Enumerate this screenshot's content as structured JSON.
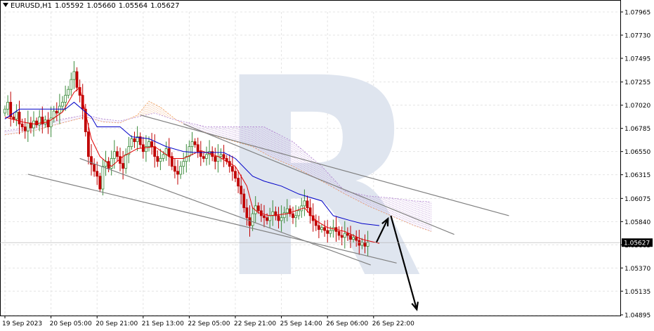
{
  "header": {
    "symbol": "EURUSD,H1",
    "open": "1.05592",
    "high": "1.05660",
    "low": "1.05564",
    "close": "1.05627"
  },
  "watermark": {
    "letter": "R",
    "color": "#dfe5ef"
  },
  "colors": {
    "bull_candle": "#3a8a3a",
    "bear_candle": "#c00000",
    "tenkan": "#e00000",
    "kijun": "#0000c8",
    "kumo_a": "#f0a060",
    "kumo_b": "#b080d0",
    "trendline": "#808080",
    "arrow": "#000000",
    "current_price_box": "#000000"
  },
  "chart_data": {
    "type": "candlestick",
    "symbol": "EURUSD",
    "timeframe": "H1",
    "ylim": [
      1.04895,
      1.07965
    ],
    "y_ticks": [
      "1.07965",
      "1.07730",
      "1.07495",
      "1.07255",
      "1.07020",
      "1.06785",
      "1.06550",
      "1.06315",
      "1.06075",
      "1.05840",
      "1.05605",
      "1.05370",
      "1.05135",
      "1.04895"
    ],
    "current_price": "1.05627",
    "x_ticks": [
      "19 Sep 2023",
      "20 Sep 05:00",
      "20 Sep 21:00",
      "21 Sep 13:00",
      "22 Sep 05:00",
      "22 Sep 21:00",
      "25 Sep 14:00",
      "26 Sep 06:00",
      "26 Sep 22:00"
    ],
    "x_tick_index": [
      0,
      16,
      32,
      48,
      64,
      80,
      96,
      112,
      128
    ],
    "close_series": [
      1.0698,
      1.0705,
      1.069,
      1.0688,
      1.0695,
      1.0683,
      1.068,
      1.0676,
      1.0684,
      1.0679,
      1.0686,
      1.0682,
      1.069,
      1.0683,
      1.0687,
      1.068,
      1.0689,
      1.0696,
      1.0694,
      1.0701,
      1.0705,
      1.0712,
      1.0718,
      1.0728,
      1.0736,
      1.072,
      1.0712,
      1.0698,
      1.0675,
      1.065,
      1.0642,
      1.0635,
      1.063,
      1.0617,
      1.064,
      1.0645,
      1.0638,
      1.0648,
      1.0655,
      1.065,
      1.0643,
      1.0638,
      1.0652,
      1.066,
      1.0668,
      1.0665,
      1.067,
      1.0662,
      1.0655,
      1.066,
      1.0665,
      1.066,
      1.065,
      1.0645,
      1.0648,
      1.0652,
      1.0658,
      1.065,
      1.064,
      1.0635,
      1.0632,
      1.064,
      1.0645,
      1.065,
      1.066,
      1.0665,
      1.0662,
      1.0655,
      1.065,
      1.0648,
      1.0652,
      1.0655,
      1.065,
      1.0645,
      1.065,
      1.0652,
      1.0648,
      1.0645,
      1.064,
      1.0635,
      1.0628,
      1.062,
      1.0612,
      1.0598,
      1.0588,
      1.058,
      1.0592,
      1.06,
      1.0595,
      1.059,
      1.0588,
      1.0585,
      1.059,
      1.0594,
      1.059,
      1.0585,
      1.0588,
      1.0593,
      1.0597,
      1.0592,
      1.0588,
      1.059,
      1.0595,
      1.06,
      1.0605,
      1.0598,
      1.059,
      1.0585,
      1.058,
      1.0576,
      1.0578,
      1.0575,
      1.0572,
      1.0575,
      1.0578,
      1.0574,
      1.057,
      1.0568,
      1.0572,
      1.057,
      1.0566,
      1.0568,
      1.0565,
      1.056,
      1.0563,
      1.0559,
      1.0563
    ],
    "tenkan": [
      [
        0,
        1.069
      ],
      [
        6,
        1.0685
      ],
      [
        10,
        1.0683
      ],
      [
        15,
        1.0685
      ],
      [
        20,
        1.0695
      ],
      [
        24,
        1.0715
      ],
      [
        26,
        1.072
      ],
      [
        30,
        1.0668
      ],
      [
        33,
        1.065
      ],
      [
        37,
        1.064
      ],
      [
        41,
        1.065
      ],
      [
        46,
        1.0658
      ],
      [
        52,
        1.066
      ],
      [
        58,
        1.0648
      ],
      [
        62,
        1.0648
      ],
      [
        68,
        1.0656
      ],
      [
        74,
        1.065
      ],
      [
        80,
        1.064
      ],
      [
        84,
        1.062
      ],
      [
        86,
        1.0598
      ],
      [
        88,
        1.0593
      ],
      [
        92,
        1.059
      ],
      [
        98,
        1.0592
      ],
      [
        104,
        1.0598
      ],
      [
        108,
        1.0585
      ],
      [
        112,
        1.0578
      ],
      [
        118,
        1.0574
      ],
      [
        124,
        1.0566
      ],
      [
        130,
        1.0562
      ]
    ],
    "kijun": [
      [
        0,
        1.0688
      ],
      [
        5,
        1.0698
      ],
      [
        12,
        1.0698
      ],
      [
        21,
        1.0698
      ],
      [
        24,
        1.0705
      ],
      [
        30,
        1.069
      ],
      [
        32,
        1.068
      ],
      [
        40,
        1.068
      ],
      [
        44,
        1.067
      ],
      [
        50,
        1.0668
      ],
      [
        56,
        1.066
      ],
      [
        62,
        1.0655
      ],
      [
        66,
        1.0654
      ],
      [
        76,
        1.0654
      ],
      [
        80,
        1.0648
      ],
      [
        86,
        1.063
      ],
      [
        90,
        1.0625
      ],
      [
        96,
        1.062
      ],
      [
        102,
        1.0612
      ],
      [
        110,
        1.0605
      ],
      [
        114,
        1.059
      ],
      [
        120,
        1.0585
      ],
      [
        124,
        1.0582
      ],
      [
        130,
        1.058
      ]
    ],
    "kumo_span_a": [
      [
        0,
        1.0672
      ],
      [
        10,
        1.0676
      ],
      [
        20,
        1.0684
      ],
      [
        28,
        1.069
      ],
      [
        34,
        1.0685
      ],
      [
        40,
        1.0684
      ],
      [
        46,
        1.0692
      ],
      [
        50,
        1.0706
      ],
      [
        54,
        1.07
      ],
      [
        60,
        1.0686
      ],
      [
        66,
        1.0678
      ],
      [
        74,
        1.067
      ],
      [
        80,
        1.0665
      ],
      [
        86,
        1.066
      ],
      [
        92,
        1.065
      ],
      [
        100,
        1.064
      ],
      [
        110,
        1.0625
      ],
      [
        118,
        1.0612
      ],
      [
        126,
        1.06
      ],
      [
        134,
        1.059
      ],
      [
        142,
        1.058
      ],
      [
        148,
        1.0574
      ]
    ],
    "kumo_span_b": [
      [
        0,
        1.0676
      ],
      [
        10,
        1.068
      ],
      [
        20,
        1.0688
      ],
      [
        28,
        1.0692
      ],
      [
        34,
        1.0688
      ],
      [
        40,
        1.0686
      ],
      [
        46,
        1.069
      ],
      [
        52,
        1.0694
      ],
      [
        58,
        1.0688
      ],
      [
        64,
        1.0684
      ],
      [
        70,
        1.068
      ],
      [
        80,
        1.068
      ],
      [
        90,
        1.068
      ],
      [
        100,
        1.0665
      ],
      [
        110,
        1.064
      ],
      [
        118,
        1.0615
      ],
      [
        126,
        1.061
      ],
      [
        134,
        1.0608
      ],
      [
        142,
        1.0605
      ],
      [
        148,
        1.0604
      ]
    ],
    "trendlines": [
      [
        [
          47,
          1.0692
        ],
        [
          175,
          1.059
        ]
      ],
      [
        [
          62,
          1.0683
        ],
        [
          156,
          1.0571
        ]
      ],
      [
        [
          26,
          1.0648
        ],
        [
          127,
          1.054
        ]
      ],
      [
        [
          8,
          1.0632
        ],
        [
          136,
          1.0542
        ]
      ]
    ],
    "forecast_arrows": [
      [
        [
          129,
          1.0563
        ],
        [
          133,
          1.0587
        ]
      ],
      [
        [
          134,
          1.059
        ],
        [
          143,
          1.0495
        ]
      ]
    ]
  }
}
